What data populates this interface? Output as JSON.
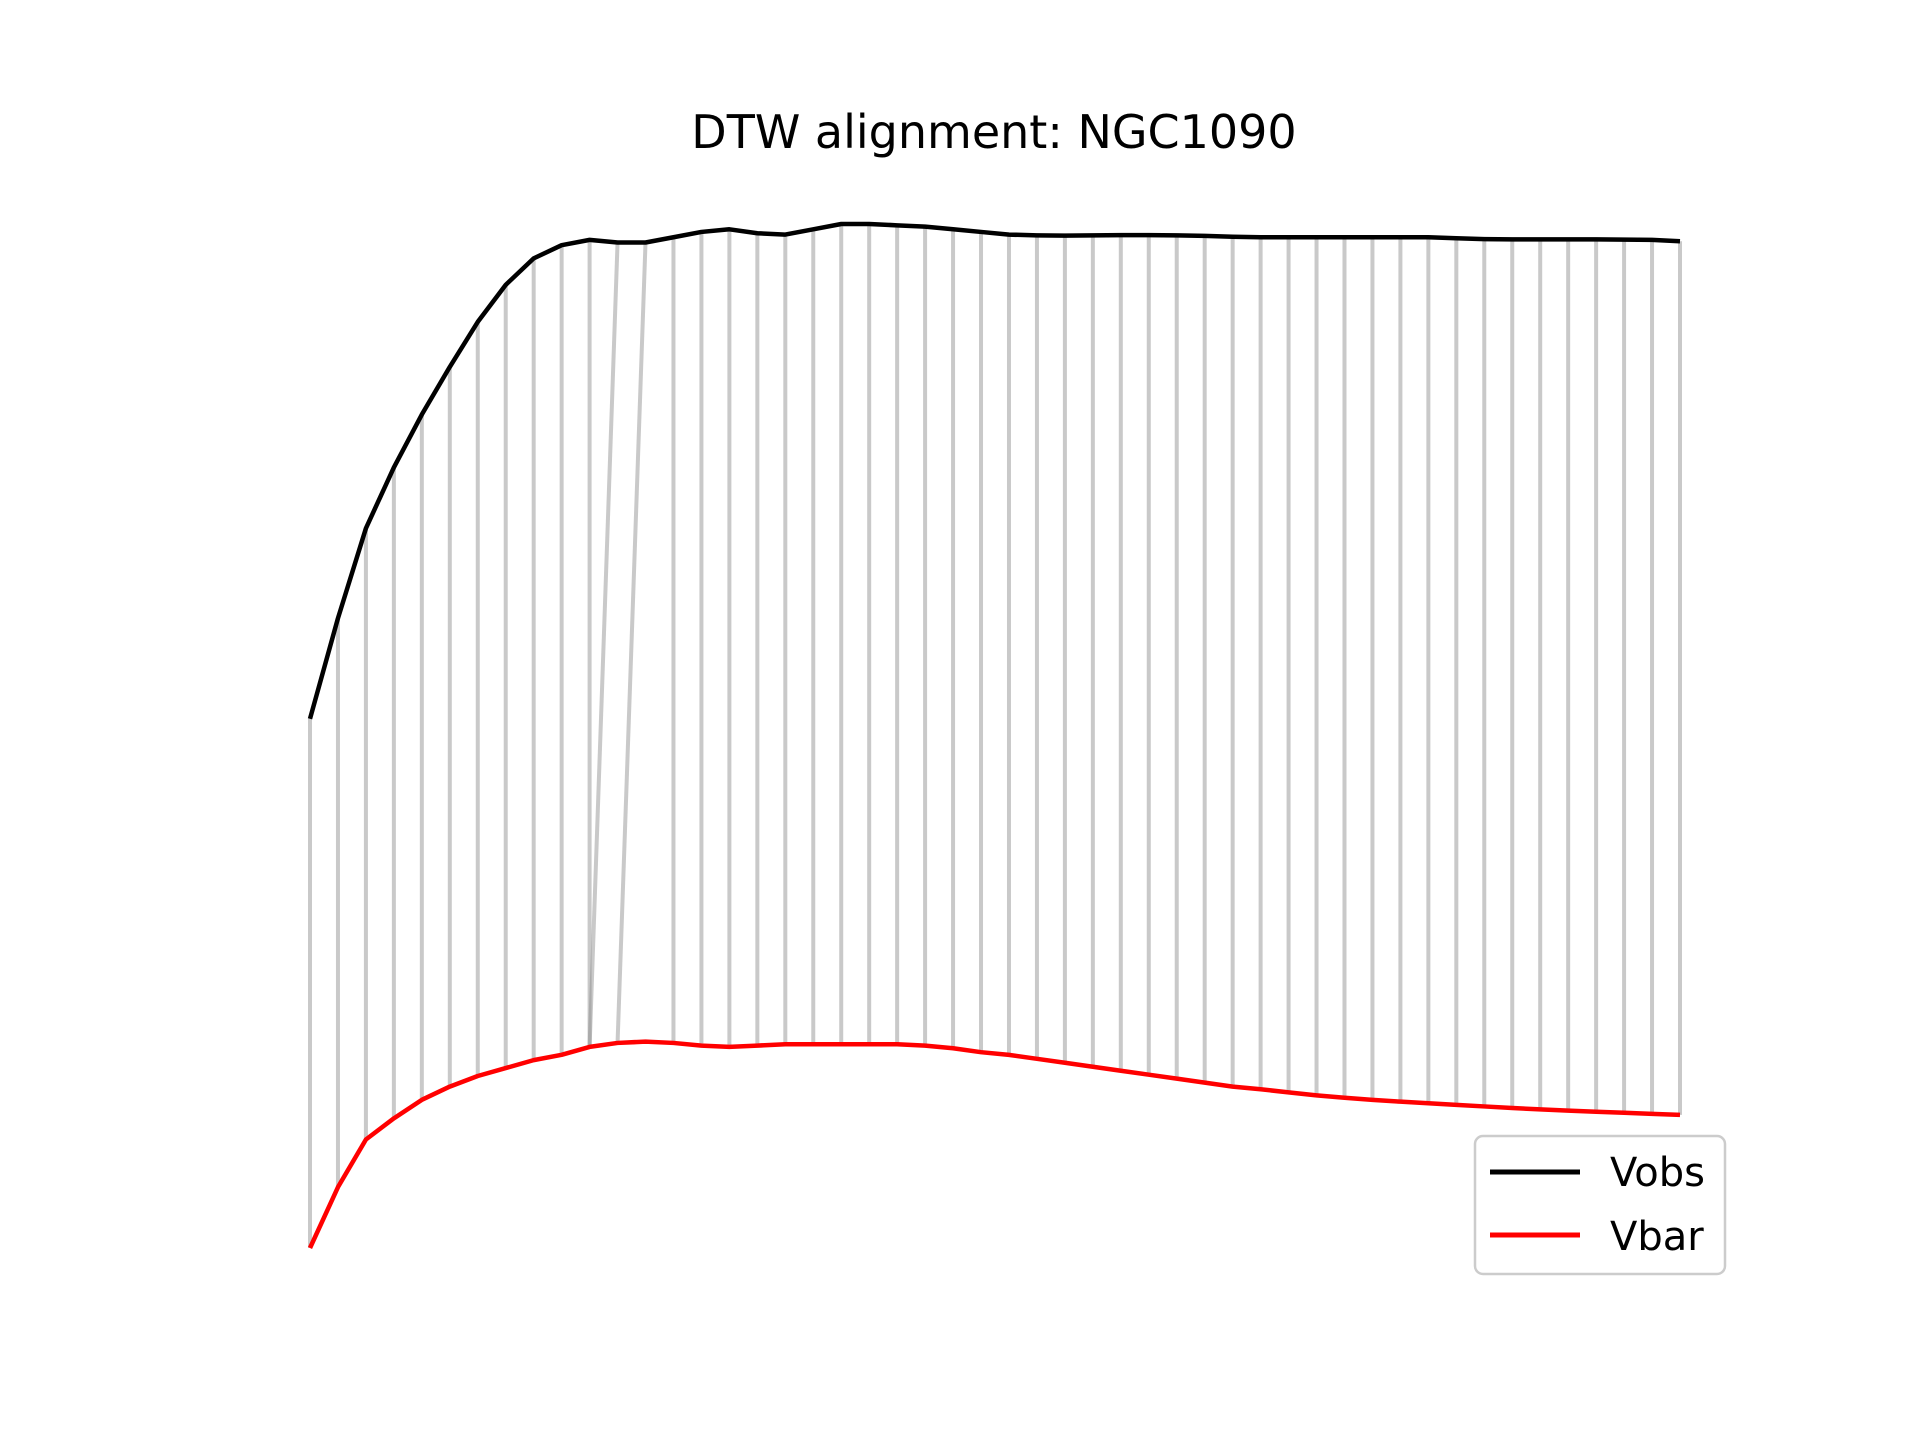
{
  "chart_data": {
    "type": "line",
    "title": "DTW alignment: NGC1090",
    "xlabel": "",
    "ylabel": "",
    "axes_visible": false,
    "grid": false,
    "legend_position": "lower-right",
    "series": [
      {
        "name": "Vobs",
        "color": "#000000",
        "values": [
          -0.4,
          -0.02,
          0.32,
          0.55,
          0.75,
          0.93,
          1.1,
          1.24,
          1.34,
          1.39,
          1.41,
          1.4,
          1.4,
          1.42,
          1.44,
          1.45,
          1.435,
          1.43,
          1.45,
          1.47,
          1.47,
          1.465,
          1.46,
          1.45,
          1.44,
          1.43,
          1.427,
          1.426,
          1.427,
          1.428,
          1.428,
          1.427,
          1.425,
          1.422,
          1.42,
          1.42,
          1.42,
          1.42,
          1.42,
          1.42,
          1.42,
          1.416,
          1.413,
          1.412,
          1.412,
          1.412,
          1.412,
          1.411,
          1.41,
          1.405
        ]
      },
      {
        "name": "Vbar",
        "color": "#ff0000",
        "values": [
          -2.4,
          -2.17,
          -1.99,
          -1.91,
          -1.84,
          -1.79,
          -1.75,
          -1.72,
          -1.69,
          -1.67,
          -1.64,
          -1.625,
          -1.62,
          -1.625,
          -1.635,
          -1.64,
          -1.635,
          -1.63,
          -1.63,
          -1.63,
          -1.63,
          -1.63,
          -1.635,
          -1.645,
          -1.66,
          -1.67,
          -1.685,
          -1.7,
          -1.715,
          -1.73,
          -1.745,
          -1.76,
          -1.775,
          -1.79,
          -1.8,
          -1.812,
          -1.823,
          -1.832,
          -1.84,
          -1.847,
          -1.853,
          -1.859,
          -1.865,
          -1.871,
          -1.876,
          -1.881,
          -1.885,
          -1.889,
          -1.893,
          -1.897
        ]
      }
    ],
    "alignment_color": "#888888"
  }
}
